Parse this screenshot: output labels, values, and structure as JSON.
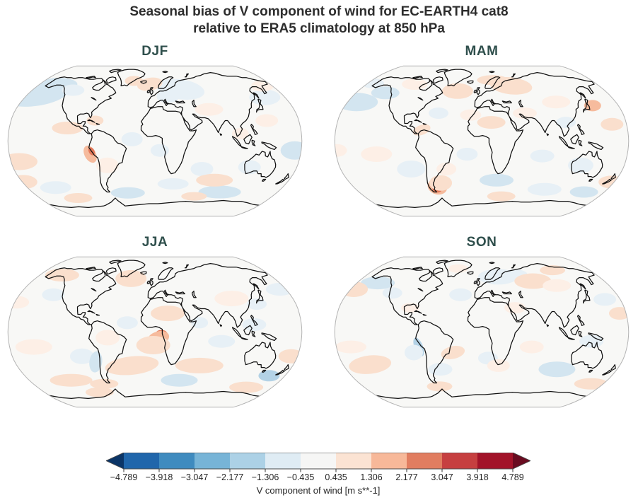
{
  "title": {
    "line1": "Seasonal bias of V component of wind for EC-EARTH4 cat8",
    "line2": "relative to ERA5 climatology at 850 hPa"
  },
  "chart_data": {
    "type": "heatmap",
    "subtype": "filled-contour global bias maps",
    "projection": "Robinson",
    "grid": "2x2 seasonal panels",
    "subplots": [
      {
        "label": "DJF",
        "notable_features": "positive (red) bias spot along Peru/Andes coast; light blue over North Pacific and eastern Europe"
      },
      {
        "label": "MAM",
        "notable_features": "strong positive (red) bias spot near southern Argentina/Falklands; light blue over northwest Pacific"
      },
      {
        "label": "JJA",
        "notable_features": "positive (red) bias spot at Gulf of Guinea/Congo coast; broad light red bands over southern oceans"
      },
      {
        "label": "SON",
        "notable_features": "negative (blue) streak along Peru coast; scattered weak red/blue patches"
      }
    ],
    "colorbar": {
      "label": "V component of wind [m s**-1]",
      "ticks": [
        "−4.789",
        "−3.918",
        "−3.047",
        "−2.177",
        "−1.306",
        "−0.435",
        "0.435",
        "1.306",
        "2.177",
        "3.047",
        "3.918",
        "4.789"
      ],
      "tick_values": [
        -4.789,
        -3.918,
        -3.047,
        -2.177,
        -1.306,
        -0.435,
        0.435,
        1.306,
        2.177,
        3.047,
        3.918,
        4.789
      ],
      "extend": "both",
      "colormap": "diverging blue-white-red (RdBu)",
      "segment_colors": [
        "#2066ab",
        "#3f8bbf",
        "#77b4d7",
        "#acd1e6",
        "#dfecf4",
        "#f6f6f5",
        "#fbe3d3",
        "#f7b899",
        "#e17d60",
        "#c63f40",
        "#a21329"
      ],
      "under_color": "#0b3567",
      "over_color": "#690b20"
    },
    "colors": {
      "figure_title": "#2d2d2d",
      "season_label": "#2f4f4c",
      "coastline": "#111111",
      "map_outline": "#b3b3b3",
      "map_background": "#f8f8f6",
      "tick_text": "#262626"
    },
    "legend_position": "bottom horizontal colorbar"
  }
}
